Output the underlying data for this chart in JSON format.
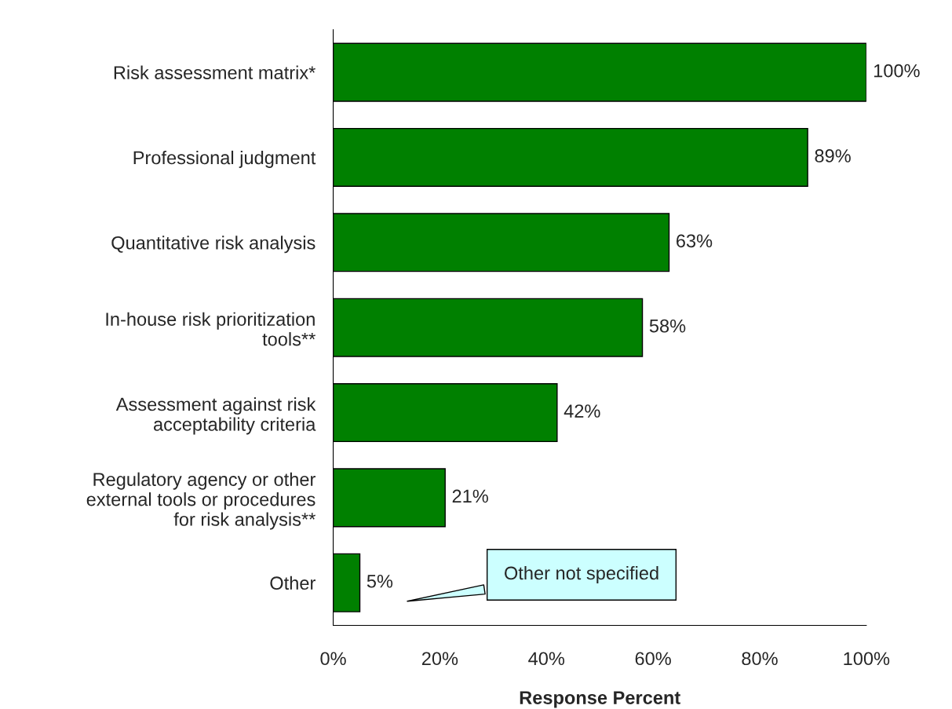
{
  "chart_data": {
    "type": "bar",
    "orientation": "horizontal",
    "xlabel": "Response Percent",
    "categories": [
      "Risk assessment matrix*",
      "Professional judgment",
      "Quantitative risk analysis",
      "In-house risk prioritization\ntools**",
      "Assessment against risk\nacceptability criteria",
      "Regulatory agency or other\nexternal tools or procedures\nfor risk analysis**",
      "Other"
    ],
    "values": [
      100,
      89,
      63,
      58,
      42,
      21,
      5
    ],
    "value_labels": [
      "100%",
      "89%",
      "63%",
      "58%",
      "42%",
      "21%",
      "5%"
    ],
    "color": "#008000",
    "xlim": [
      0,
      100
    ],
    "xticks": [
      {
        "value": 0,
        "label": "0%"
      },
      {
        "value": 20,
        "label": "20%"
      },
      {
        "value": 40,
        "label": "40%"
      },
      {
        "value": 60,
        "label": "60%"
      },
      {
        "value": 80,
        "label": "80%"
      },
      {
        "value": 100,
        "label": "100%"
      }
    ],
    "grid": false,
    "legend": false,
    "annotations": [
      "Other not specified"
    ]
  }
}
